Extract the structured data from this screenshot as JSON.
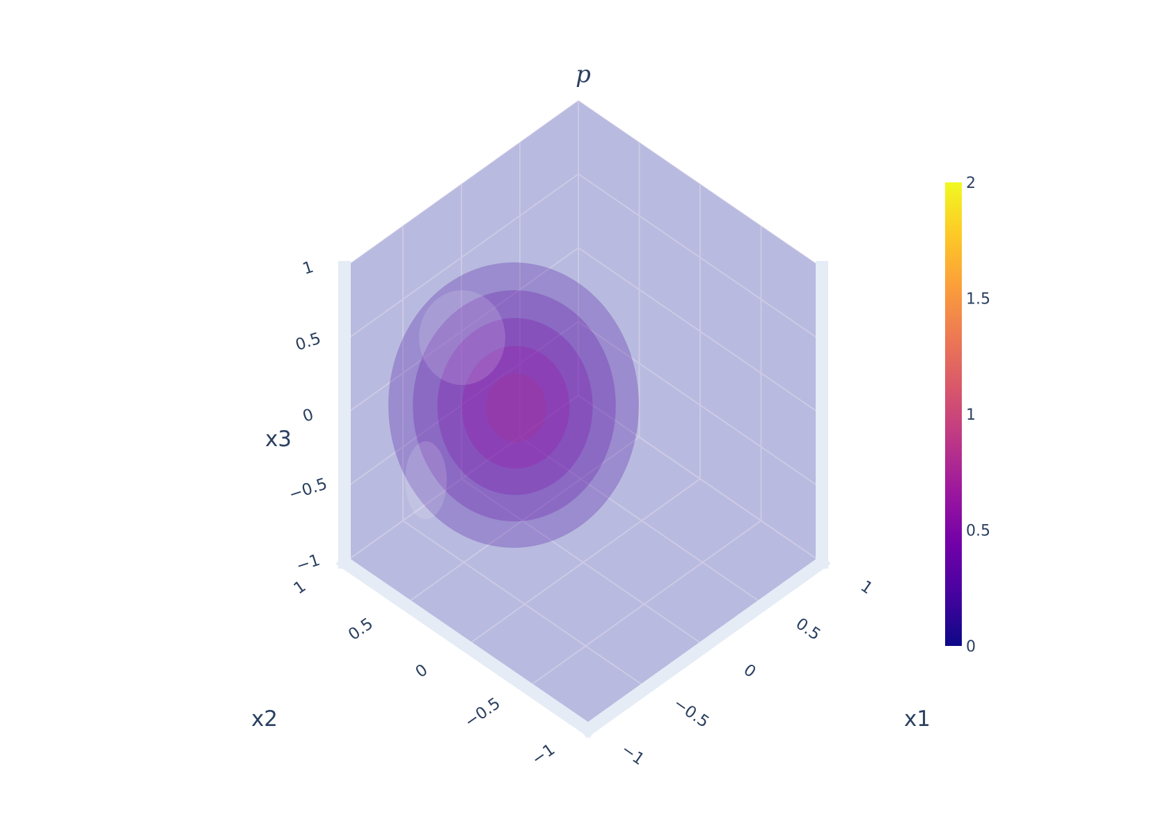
{
  "chart_data": {
    "type": "volume",
    "title": "p",
    "scene": {
      "xaxis": {
        "title": "x1",
        "range": [
          -1,
          1
        ],
        "tickvals": [
          -1,
          -0.5,
          0,
          0.5,
          1
        ],
        "ticktext": [
          "−1",
          "−0.5",
          "0",
          "0.5",
          "1"
        ]
      },
      "yaxis": {
        "title": "x2",
        "range": [
          -1,
          1
        ],
        "tickvals": [
          -1,
          -0.5,
          0,
          0.5,
          1
        ],
        "ticktext": [
          "−1",
          "−0.5",
          "0",
          "0.5",
          "1"
        ]
      },
      "zaxis": {
        "title": "x3",
        "range": [
          -1,
          1
        ],
        "tickvals": [
          -1,
          -0.5,
          0,
          0.5,
          1
        ],
        "ticktext": [
          "−1",
          "−0.5",
          "0",
          "0.5",
          "1"
        ]
      },
      "grid": true,
      "background_color": "#e5ecf6"
    },
    "volume": {
      "isosurface_levels": [
        0.2,
        0.35,
        0.5,
        0.65,
        0.8
      ],
      "center": [
        0,
        0,
        0
      ],
      "opacity": 0.2
    },
    "colorbar": {
      "cmin": 0,
      "cmax": 2,
      "tickvals": [
        0,
        0.5,
        1,
        1.5,
        2
      ],
      "ticktext": [
        "0",
        "0.5",
        "1",
        "1.5",
        "2"
      ],
      "colorscale": [
        "#0d0887",
        "#46039f",
        "#7201a8",
        "#9c179e",
        "#bd3786",
        "#d8576b",
        "#ed7953",
        "#fb9f3a",
        "#fdca26",
        "#f0f921"
      ]
    }
  }
}
